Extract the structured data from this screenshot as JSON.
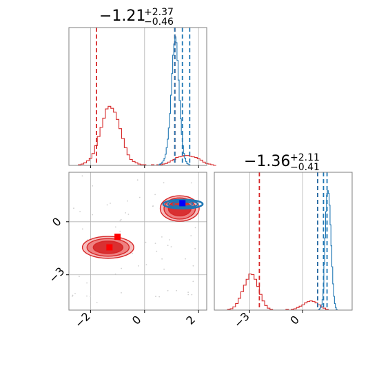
{
  "chart_data": {
    "type": "corner",
    "colors": {
      "red": "#d62728",
      "blue": "#1f77b4",
      "red_fill": "#f08080",
      "blue_marker": "#0000ff",
      "red_marker": "#ff0000"
    },
    "panels": {
      "x_hist": {
        "title": {
          "median": "−1.21",
          "upper": "+2.37",
          "lower": "−0.46"
        },
        "xlim": [
          -2.8,
          2.3
        ],
        "grid_x": [
          -2,
          0,
          2
        ],
        "series": [
          {
            "color": "#d62728",
            "bins_x0": -2.55,
            "bin_width": 0.1,
            "heights": [
              0,
              1,
              2,
              4,
              7,
              11,
              18,
              30,
              44,
              58,
              72,
              86,
              90,
              87,
              81,
              70,
              56,
              41,
              27,
              16,
              9,
              6,
              4,
              2,
              1,
              1,
              0,
              0,
              1,
              0,
              1,
              1,
              2,
              3,
              5,
              7,
              9,
              12,
              13,
              14,
              15,
              15,
              14,
              13,
              12,
              10,
              8,
              5,
              3,
              2,
              1,
              0
            ],
            "quantiles": [
              -1.78,
              1.12,
              1.12
            ]
          },
          {
            "color": "#1f77b4",
            "bins_x0": 0.52,
            "bin_width": 0.04,
            "heights": [
              1,
              2,
              3,
              5,
              7,
              11,
              17,
              27,
              40,
              57,
              79,
              107,
              140,
              168,
              185,
              196,
              187,
              160,
              130,
              99,
              71,
              47,
              30,
              18,
              11,
              6,
              3,
              2,
              1
            ],
            "quantiles": [
              1.12,
              1.4,
              1.67
            ]
          }
        ],
        "hist_max": 210
      },
      "scatter": {
        "xlim": [
          -2.8,
          2.3
        ],
        "ylim": [
          -5.0,
          2.8
        ],
        "xticks": [
          -2,
          0,
          2
        ],
        "yticks": [
          -3,
          0
        ],
        "xtick_labels": [
          "−2",
          "0",
          "2"
        ],
        "ytick_labels": [
          "−3",
          "0"
        ],
        "red_clusters": [
          {
            "cx": -1.35,
            "cy": -1.45,
            "levels": [
              [
                0.95,
                0.62
              ],
              [
                0.78,
                0.5
              ],
              [
                0.55,
                0.35
              ]
            ]
          },
          {
            "cx": 1.3,
            "cy": 0.75,
            "levels": [
              [
                0.72,
                0.72
              ],
              [
                0.58,
                0.6
              ],
              [
                0.42,
                0.42
              ]
            ]
          }
        ],
        "blue_cluster": {
          "cx": 1.42,
          "cy": 1.0,
          "levels": [
            [
              0.73,
              0.25
            ],
            [
              0.55,
              0.19
            ],
            [
              0.36,
              0.12
            ]
          ]
        },
        "markers": [
          {
            "x": -1.0,
            "y": -0.85,
            "color": "#ff0000"
          },
          {
            "x": -1.3,
            "y": -1.45,
            "color": "#ff0000"
          },
          {
            "x": 1.4,
            "y": 1.05,
            "color": "#0000ff"
          }
        ]
      },
      "y_hist": {
        "title": {
          "median": "−1.36",
          "upper": "+2.11",
          "lower": "−0.41"
        },
        "xlim": [
          -5.0,
          2.8
        ],
        "grid_x": [
          -3,
          0
        ],
        "xtick_labels": [
          "−3",
          "0"
        ],
        "series": [
          {
            "color": "#d62728",
            "bins_x0": -4.4,
            "bin_width": 0.15,
            "heights": [
              0,
              1,
              2,
              5,
              10,
              18,
              28,
              38,
              47,
              55,
              54,
              47,
              36,
              24,
              14,
              7,
              3,
              1,
              0,
              0,
              0,
              0,
              0,
              1,
              0,
              1,
              2,
              4,
              6,
              8,
              11,
              13,
              14,
              13,
              11,
              8,
              5,
              3,
              1
            ],
            "quantiles": [
              -2.45,
              0.85,
              0.85
            ]
          },
          {
            "color": "#1f77b4",
            "bins_x0": 0.9,
            "bin_width": 0.05,
            "heights": [
              1,
              2,
              4,
              8,
              16,
              32,
              70,
              110,
              150,
              175,
              182,
              178,
              160,
              130,
              98,
              66,
              40,
              21,
              10,
              4,
              1
            ],
            "quantiles": [
              0.85,
              1.18,
              1.38
            ]
          }
        ],
        "hist_max": 210
      }
    }
  }
}
